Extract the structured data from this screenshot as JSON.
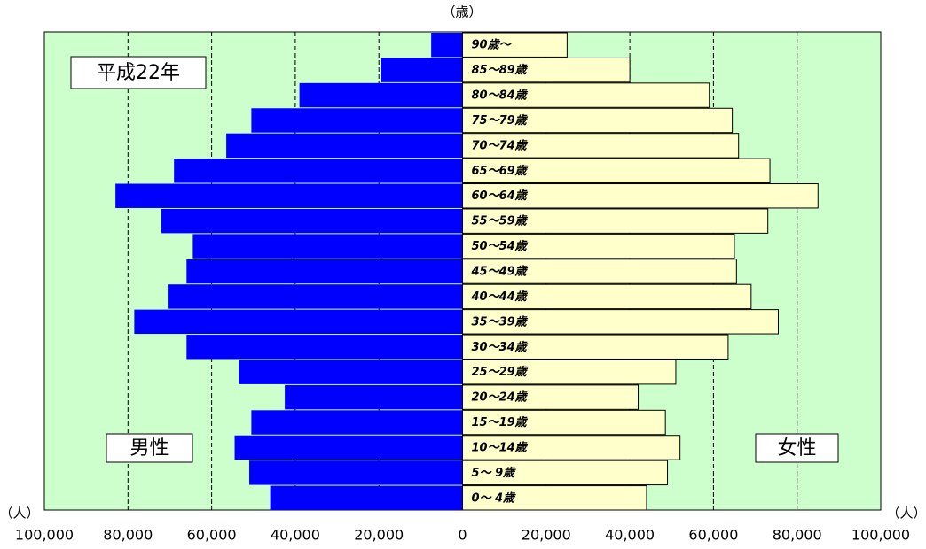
{
  "chart_data": {
    "type": "pyramid",
    "title": "平成22年",
    "y_axis_label": "（歳）",
    "x_axis_label": "（人）",
    "categories": [
      "90歳～",
      "85～89歳",
      "80～84歳",
      "75～79歳",
      "70～74歳",
      "65～69歳",
      "60～64歳",
      "55～59歳",
      "50～54歳",
      "45～49歳",
      "40～44歳",
      "35～39歳",
      "30～34歳",
      "25～29歳",
      "20～24歳",
      "15～19歳",
      "10～14歳",
      "5～ 9歳",
      "0～ 4歳"
    ],
    "series": [
      {
        "name": "男性",
        "color": "#0000ff",
        "side": "left",
        "values": [
          7500,
          19500,
          39000,
          50500,
          56500,
          69000,
          83000,
          72000,
          64500,
          66000,
          70500,
          78500,
          66000,
          53500,
          42500,
          50500,
          54500,
          51000,
          46000
        ]
      },
      {
        "name": "女性",
        "color": "#ffffcc",
        "side": "right",
        "values": [
          25000,
          40000,
          59000,
          64500,
          66000,
          73500,
          85000,
          73000,
          65000,
          65500,
          69000,
          75500,
          63500,
          51000,
          42000,
          48500,
          52000,
          49000,
          44000
        ]
      }
    ],
    "xlim": [
      -100000,
      100000
    ],
    "xticks": [
      {
        "value": -100000,
        "label": "100,000"
      },
      {
        "value": -80000,
        "label": "80,000"
      },
      {
        "value": -60000,
        "label": "60,000"
      },
      {
        "value": -40000,
        "label": "40,000"
      },
      {
        "value": -20000,
        "label": "20,000"
      },
      0,
      {
        "value": 20000,
        "label": "20,000"
      },
      {
        "value": 40000,
        "label": "40,000"
      },
      {
        "value": 60000,
        "label": "60,000"
      },
      {
        "value": 80000,
        "label": "80,000"
      },
      {
        "value": 100000,
        "label": "100,000"
      }
    ],
    "grid": true
  }
}
